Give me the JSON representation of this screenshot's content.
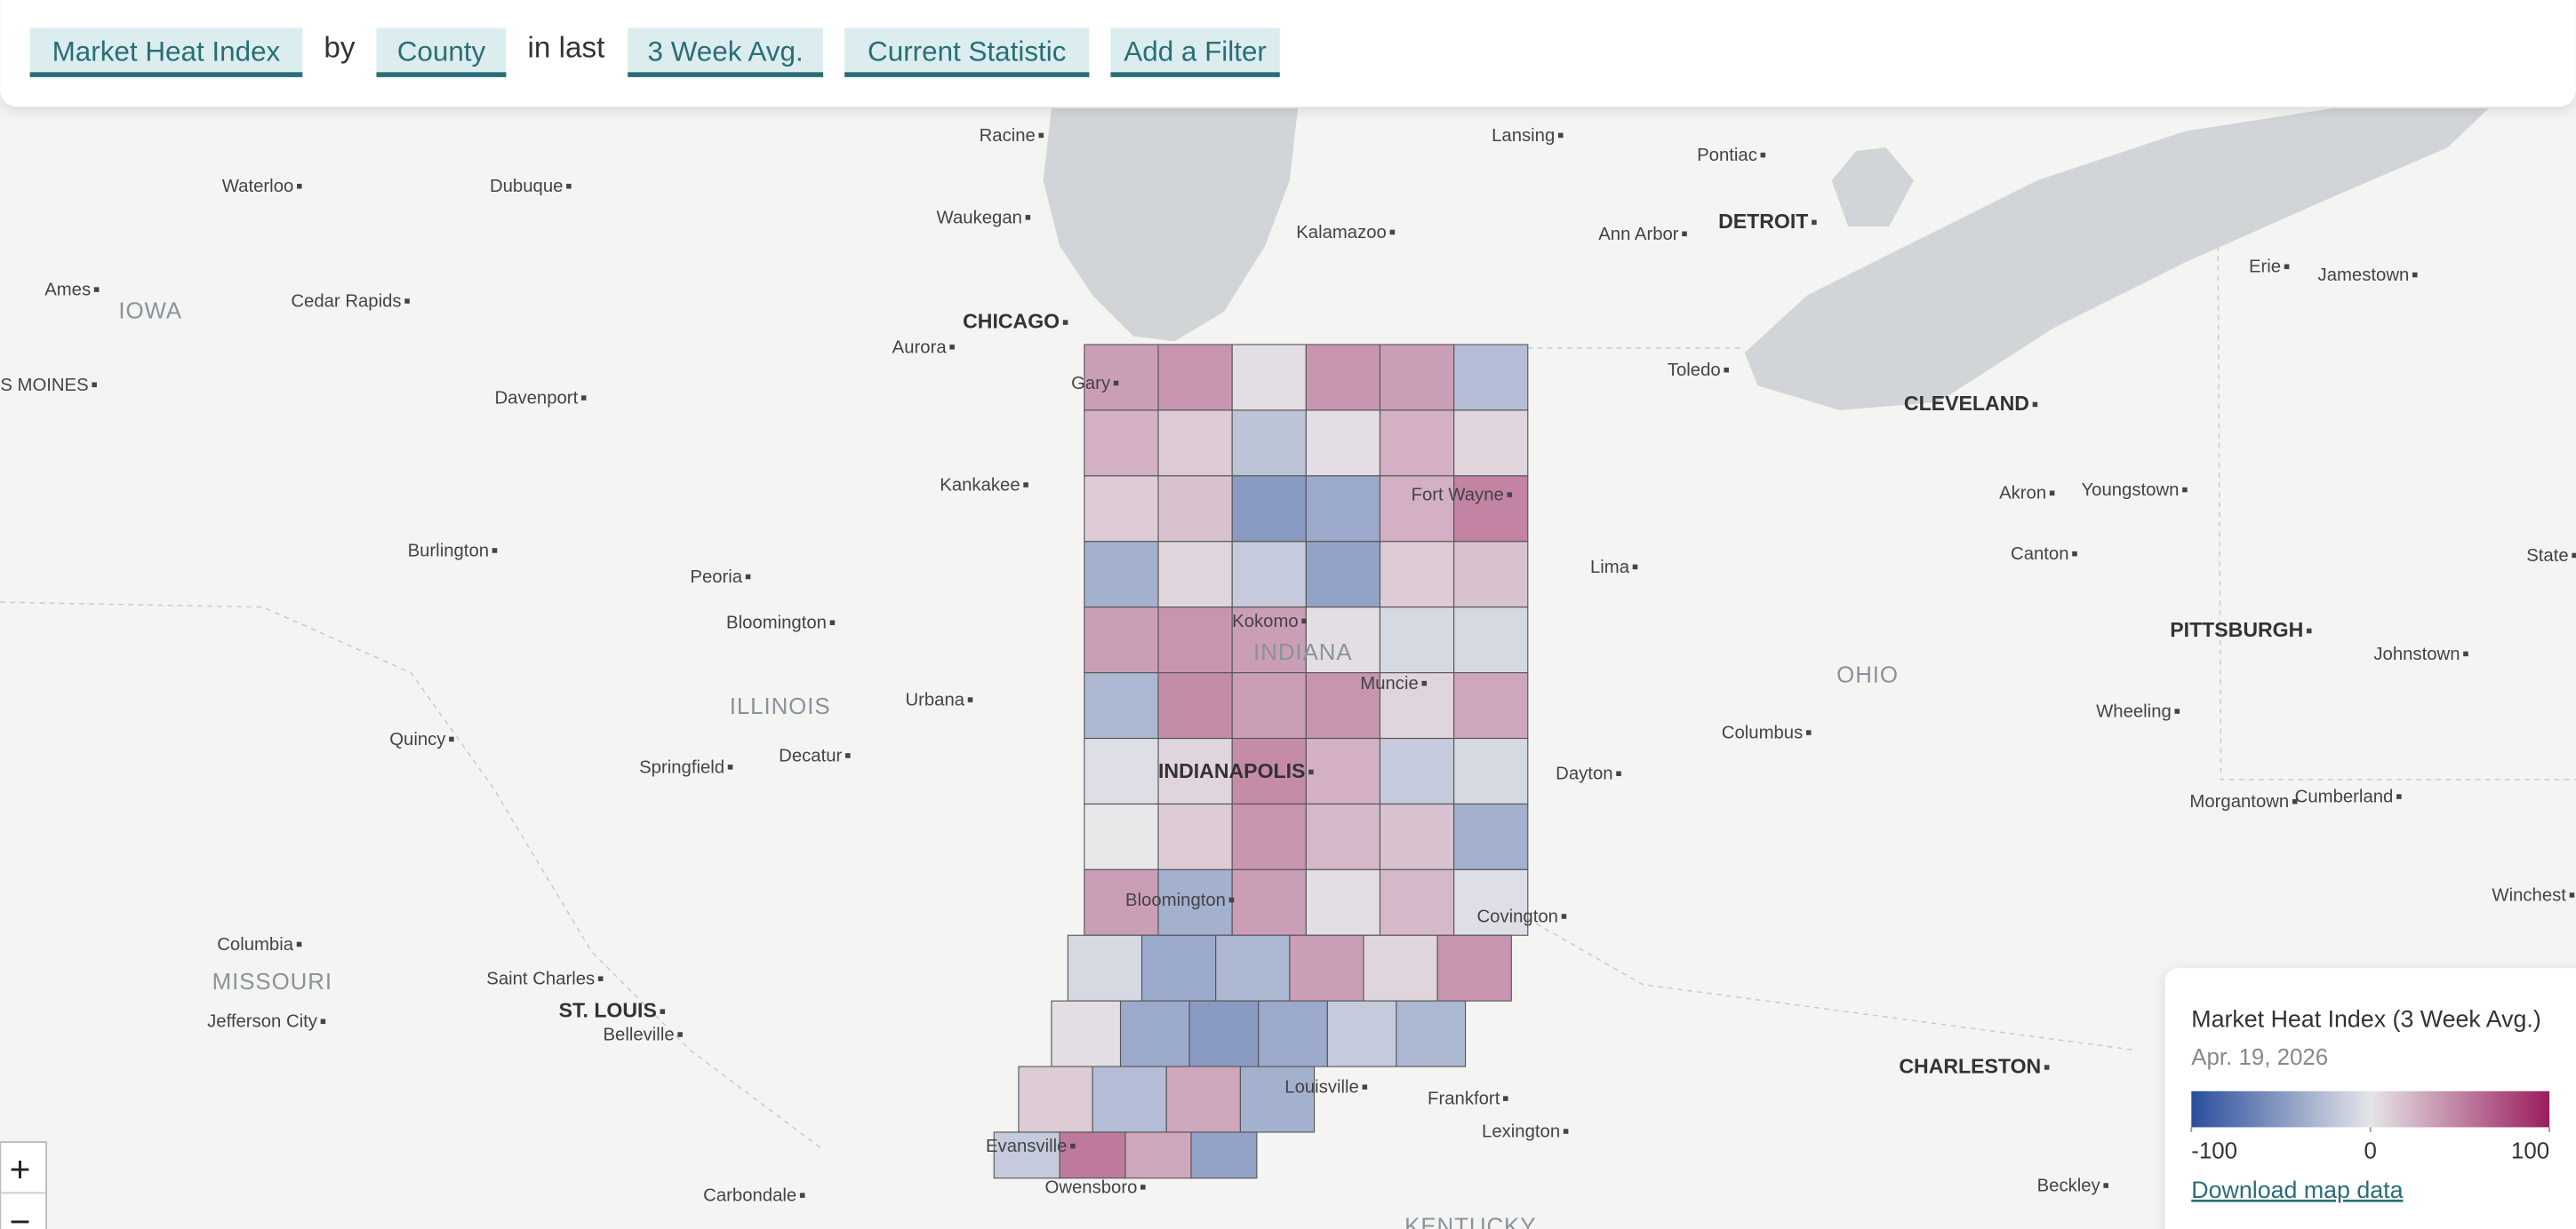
{
  "toolbar": {
    "items": [
      {
        "text": "Market Heat Index",
        "chip": true
      },
      {
        "text": "by",
        "chip": false
      },
      {
        "text": "County",
        "chip": true
      },
      {
        "text": "in last",
        "chip": false
      },
      {
        "text": "3 Week Avg.",
        "chip": true
      },
      {
        "text": "Current Statistic",
        "chip": true
      },
      {
        "text": "Add a Filter",
        "chip": true
      }
    ]
  },
  "map": {
    "cities": [
      {
        "name": "Racine",
        "major": false
      },
      {
        "name": "Lansing",
        "major": false
      },
      {
        "name": "Waterloo",
        "major": false
      },
      {
        "name": "Dubuque",
        "major": false
      },
      {
        "name": "Pontiac",
        "major": false
      },
      {
        "name": "Waukegan",
        "major": false
      },
      {
        "name": "Kalamazoo",
        "major": false
      },
      {
        "name": "Ann Arbor",
        "major": false
      },
      {
        "name": "DETROIT",
        "major": true
      },
      {
        "name": "Erie",
        "major": false
      },
      {
        "name": "Jamestown",
        "major": false
      },
      {
        "name": "Ames",
        "major": false
      },
      {
        "name": "Cedar Rapids",
        "major": false
      },
      {
        "name": "CHICAGO",
        "major": true
      },
      {
        "name": "Aurora",
        "major": false
      },
      {
        "name": "Gary",
        "major": false
      },
      {
        "name": "Toledo",
        "major": false
      },
      {
        "name": "S MOINES",
        "major": false
      },
      {
        "name": "Davenport",
        "major": false
      },
      {
        "name": "CLEVELAND",
        "major": true
      },
      {
        "name": "Kankakee",
        "major": false
      },
      {
        "name": "Akron",
        "major": false
      },
      {
        "name": "Youngstown",
        "major": false
      },
      {
        "name": "Fort Wayne",
        "major": false
      },
      {
        "name": "Burlington",
        "major": false
      },
      {
        "name": "Canton",
        "major": false
      },
      {
        "name": "State",
        "major": false
      },
      {
        "name": "Lima",
        "major": false
      },
      {
        "name": "Peoria",
        "major": false
      },
      {
        "name": "Kokomo",
        "major": false
      },
      {
        "name": "Bloomington",
        "major": false
      },
      {
        "name": "PITTSBURGH",
        "major": true
      },
      {
        "name": "Johnstown",
        "major": false
      },
      {
        "name": "Muncie",
        "major": false
      },
      {
        "name": "Urbana",
        "major": false
      },
      {
        "name": "Wheeling",
        "major": false
      },
      {
        "name": "Columbus",
        "major": false
      },
      {
        "name": "Quincy",
        "major": false
      },
      {
        "name": "Decatur",
        "major": false
      },
      {
        "name": "Springfield",
        "major": false
      },
      {
        "name": "INDIANAPOLIS",
        "major": true
      },
      {
        "name": "Dayton",
        "major": false
      },
      {
        "name": "Cumberland",
        "major": false
      },
      {
        "name": "Morgantown",
        "major": false
      },
      {
        "name": "Winchest",
        "major": false
      },
      {
        "name": "Bloomington",
        "major": false
      },
      {
        "name": "Columbia",
        "major": false
      },
      {
        "name": "Covington",
        "major": false
      },
      {
        "name": "Saint Charles",
        "major": false
      },
      {
        "name": "ST. LOUIS",
        "major": true
      },
      {
        "name": "Jefferson City",
        "major": false
      },
      {
        "name": "Belleville",
        "major": false
      },
      {
        "name": "CHARLESTON",
        "major": true
      },
      {
        "name": "Louisville",
        "major": false
      },
      {
        "name": "Frankfort",
        "major": false
      },
      {
        "name": "Lexington",
        "major": false
      },
      {
        "name": "Evansville",
        "major": false
      },
      {
        "name": "Beckley",
        "major": false
      },
      {
        "name": "Owensboro",
        "major": false
      },
      {
        "name": "Carbondale",
        "major": false
      }
    ],
    "regions": [
      "IOWA",
      "ILLINOIS",
      "MISSOURI",
      "INDIANA",
      "OHIO",
      "KENTUCKY"
    ],
    "counties": {
      "values": [
        40,
        45,
        5,
        45,
        40,
        -30,
        30,
        15,
        -25,
        5,
        30,
        10,
        15,
        20,
        -55,
        -45,
        30,
        55,
        -40,
        10,
        -20,
        -50,
        15,
        20,
        40,
        45,
        40,
        5,
        -10,
        -10,
        -35,
        50,
        40,
        45,
        10,
        35,
        -5,
        10,
        50,
        30,
        -20,
        -10,
        0,
        15,
        45,
        25,
        20,
        -40,
        40,
        -40,
        40,
        5,
        25,
        -5,
        -10,
        -45,
        -35,
        40,
        10,
        45,
        5,
        -45,
        -55,
        -45,
        -20,
        -35,
        15,
        -30,
        35,
        -40,
        -20,
        60,
        35,
        -50
      ]
    }
  },
  "legend": {
    "title": "Market Heat Index (3 Week Avg.)",
    "date": "Apr. 19, 2026",
    "range": [
      -100,
      100
    ],
    "ticks": [
      -100,
      0,
      100
    ],
    "colors": [
      "#2a4d9c",
      "#e5e5e8",
      "#9a1d5c"
    ],
    "download": "Download map data"
  },
  "zoom": {
    "in": "+",
    "out": "−"
  }
}
